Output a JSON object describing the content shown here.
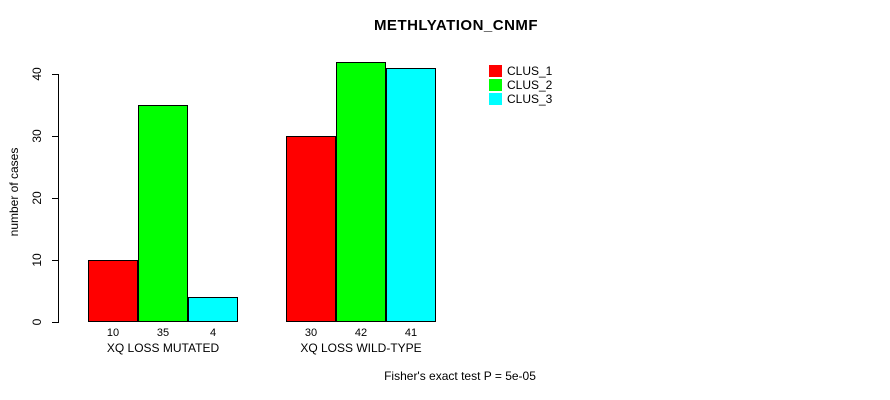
{
  "page": {
    "background": "#ffffff"
  },
  "chart_data": {
    "type": "bar",
    "title": "METHLYATION_CNMF",
    "xlabel": "",
    "ylabel": "number of cases",
    "ylim": [
      0,
      40
    ],
    "yticks": [
      0,
      10,
      20,
      30,
      40
    ],
    "grid": false,
    "legend_position": "top-right",
    "categories": [
      "XQ LOSS MUTATED",
      "XQ LOSS WILD-TYPE"
    ],
    "series": [
      {
        "name": "CLUS_1",
        "color": "#ff0000",
        "values": [
          10,
          30
        ]
      },
      {
        "name": "CLUS_2",
        "color": "#00ff00",
        "values": [
          35,
          42
        ]
      },
      {
        "name": "CLUS_3",
        "color": "#00ffff",
        "values": [
          4,
          41
        ]
      }
    ],
    "bar_value_labels": [
      [
        10,
        35,
        4
      ],
      [
        30,
        42,
        41
      ]
    ],
    "bar_border_color": "#000000",
    "axis_color": "#000000",
    "annotation": "Fisher's exact test P = 5e-05"
  }
}
